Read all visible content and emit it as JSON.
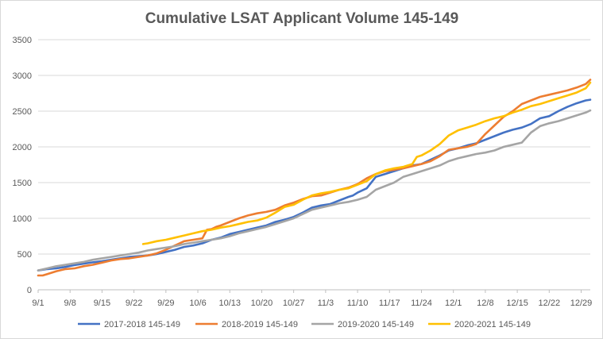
{
  "chart_data": {
    "type": "line",
    "title": "Cumulative LSAT Applicant Volume 145-149",
    "xlabel": "",
    "ylabel": "",
    "x_tick_labels": [
      "9/1",
      "9/8",
      "9/15",
      "9/22",
      "9/29",
      "10/6",
      "10/13",
      "10/20",
      "10/27",
      "11/3",
      "11/10",
      "11/17",
      "11/24",
      "12/1",
      "12/8",
      "12/15",
      "12/22",
      "12/29"
    ],
    "x_range_days": [
      0,
      121
    ],
    "ylim": [
      0,
      3500
    ],
    "y_ticks": [
      0,
      500,
      1000,
      1500,
      2000,
      2500,
      3000,
      3500
    ],
    "y_tick_labels": [
      "0",
      "500",
      "1000",
      "1500",
      "2000",
      "2500",
      "3000",
      "3500"
    ],
    "grid": true,
    "legend_position": "bottom",
    "series": [
      {
        "name": "2017-2018 145-149",
        "color": "#4472C4",
        "x": [
          0,
          2,
          4,
          6,
          8,
          10,
          12,
          14,
          16,
          18,
          20,
          22,
          24,
          26,
          28,
          30,
          31,
          32,
          33,
          34,
          36,
          38,
          40,
          42,
          44,
          46,
          48,
          50,
          52,
          54,
          56,
          58,
          60,
          62,
          64,
          66,
          68,
          69,
          70,
          72,
          74,
          76,
          77,
          78,
          79,
          80,
          82,
          84,
          86,
          88,
          90,
          92,
          94,
          96,
          98,
          100,
          102,
          104,
          106,
          108,
          110,
          112,
          114,
          116,
          118,
          120,
          121
        ],
        "y": [
          270,
          290,
          300,
          320,
          345,
          365,
          385,
          400,
          420,
          440,
          460,
          470,
          480,
          500,
          530,
          560,
          580,
          600,
          610,
          620,
          650,
          700,
          730,
          780,
          810,
          840,
          870,
          900,
          950,
          980,
          1020,
          1080,
          1150,
          1180,
          1200,
          1250,
          1300,
          1320,
          1360,
          1420,
          1580,
          1620,
          1640,
          1660,
          1680,
          1700,
          1740,
          1760,
          1820,
          1880,
          1950,
          1980,
          2020,
          2050,
          2100,
          2150,
          2200,
          2240,
          2270,
          2320,
          2400,
          2430,
          2500,
          2560,
          2610,
          2650,
          2660
        ]
      },
      {
        "name": "2018-2019 145-149",
        "color": "#ED7D31",
        "x": [
          0,
          1,
          2,
          4,
          6,
          8,
          10,
          12,
          14,
          16,
          18,
          20,
          22,
          24,
          26,
          28,
          30,
          32,
          34,
          36,
          37,
          38,
          39,
          40,
          42,
          44,
          46,
          48,
          50,
          52,
          54,
          56,
          58,
          60,
          62,
          64,
          66,
          68,
          70,
          72,
          74,
          76,
          78,
          80,
          82,
          84,
          86,
          88,
          90,
          92,
          94,
          96,
          98,
          100,
          102,
          104,
          106,
          108,
          110,
          112,
          114,
          116,
          118,
          120,
          121
        ],
        "y": [
          200,
          200,
          220,
          260,
          290,
          300,
          330,
          350,
          380,
          410,
          430,
          440,
          460,
          480,
          510,
          560,
          620,
          680,
          700,
          720,
          840,
          850,
          880,
          900,
          950,
          1000,
          1040,
          1070,
          1090,
          1120,
          1180,
          1220,
          1270,
          1310,
          1320,
          1360,
          1400,
          1430,
          1480,
          1560,
          1620,
          1660,
          1680,
          1700,
          1730,
          1760,
          1800,
          1870,
          1960,
          1980,
          2000,
          2040,
          2180,
          2300,
          2420,
          2500,
          2600,
          2650,
          2700,
          2730,
          2760,
          2790,
          2830,
          2880,
          2940
        ]
      },
      {
        "name": "2019-2020 145-149",
        "color": "#A5A5A5",
        "x": [
          0,
          2,
          4,
          6,
          8,
          10,
          12,
          14,
          16,
          18,
          20,
          22,
          24,
          26,
          28,
          30,
          32,
          34,
          36,
          38,
          40,
          42,
          44,
          46,
          48,
          50,
          52,
          54,
          56,
          58,
          60,
          62,
          64,
          66,
          68,
          70,
          72,
          74,
          76,
          78,
          80,
          82,
          84,
          86,
          88,
          90,
          92,
          94,
          96,
          98,
          100,
          102,
          104,
          106,
          108,
          110,
          112,
          114,
          116,
          118,
          120,
          121
        ],
        "y": [
          270,
          300,
          330,
          350,
          370,
          390,
          420,
          440,
          460,
          480,
          500,
          520,
          550,
          570,
          590,
          610,
          640,
          660,
          680,
          700,
          720,
          750,
          790,
          820,
          850,
          880,
          920,
          960,
          1000,
          1060,
          1120,
          1150,
          1180,
          1210,
          1230,
          1260,
          1300,
          1400,
          1450,
          1500,
          1580,
          1620,
          1660,
          1700,
          1740,
          1800,
          1840,
          1870,
          1900,
          1920,
          1950,
          2000,
          2030,
          2060,
          2200,
          2290,
          2330,
          2360,
          2400,
          2440,
          2480,
          2510
        ]
      },
      {
        "name": "2020-2021 145-149",
        "color": "#FFC000",
        "x": [
          23,
          24,
          26,
          28,
          30,
          32,
          34,
          36,
          38,
          40,
          42,
          44,
          46,
          48,
          50,
          52,
          54,
          56,
          58,
          60,
          62,
          64,
          66,
          68,
          70,
          72,
          74,
          76,
          78,
          80,
          82,
          83,
          84,
          86,
          88,
          89,
          90,
          92,
          94,
          96,
          98,
          100,
          102,
          104,
          106,
          108,
          110,
          112,
          114,
          116,
          118,
          120,
          121
        ],
        "y": [
          640,
          650,
          680,
          700,
          730,
          760,
          790,
          820,
          840,
          870,
          890,
          920,
          950,
          970,
          1010,
          1080,
          1160,
          1190,
          1260,
          1320,
          1350,
          1370,
          1400,
          1420,
          1470,
          1520,
          1620,
          1670,
          1700,
          1720,
          1760,
          1860,
          1880,
          1950,
          2040,
          2100,
          2160,
          2230,
          2270,
          2310,
          2360,
          2400,
          2430,
          2480,
          2520,
          2570,
          2600,
          2640,
          2680,
          2720,
          2760,
          2820,
          2900
        ]
      }
    ]
  }
}
